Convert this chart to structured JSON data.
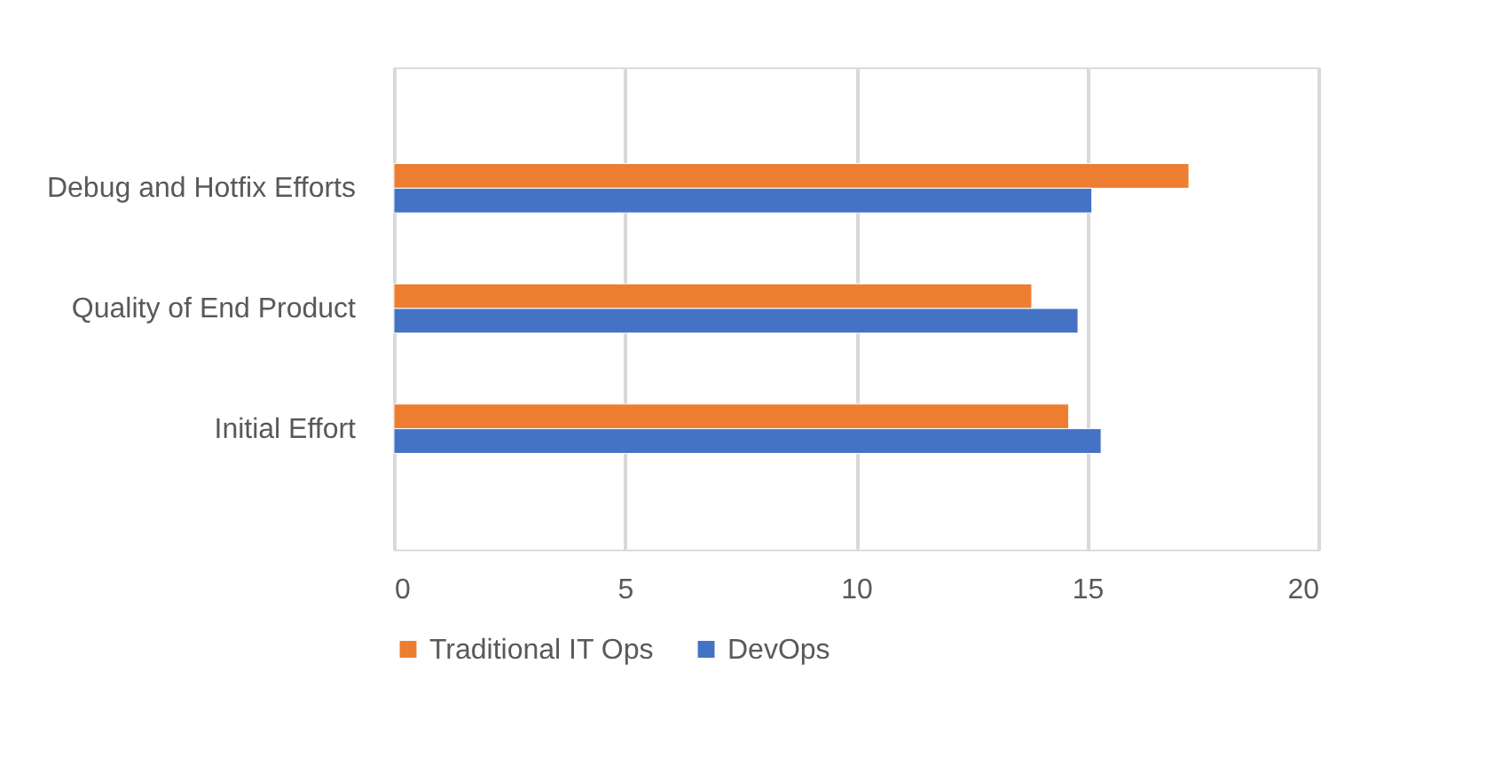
{
  "chart_data": {
    "type": "bar",
    "orientation": "horizontal",
    "categories": [
      "Debug and Hotfix Efforts",
      "Quality of End Product",
      "Initial Effort"
    ],
    "series": [
      {
        "name": "Traditional IT Ops",
        "color": "#ed7d31",
        "values": [
          17.2,
          13.8,
          14.6
        ]
      },
      {
        "name": "DevOps",
        "color": "#4472c4",
        "values": [
          15.1,
          14.8,
          15.3
        ]
      }
    ],
    "xlim": [
      0,
      20
    ],
    "xticks": [
      0,
      5,
      10,
      15,
      20
    ],
    "grid": "x",
    "legend": "bottom"
  }
}
